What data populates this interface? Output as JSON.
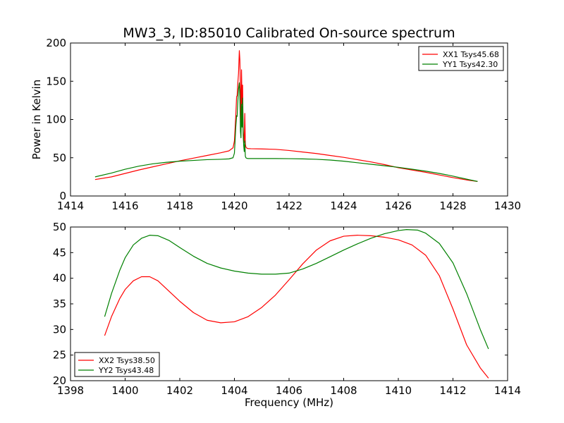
{
  "chart_data": [
    {
      "type": "line",
      "title": "MW3_3, ID:85010 Calibrated On-source spectrum",
      "xlabel": "",
      "ylabel": "Power in Kelvin",
      "xlim": [
        1414,
        1430
      ],
      "ylim": [
        0,
        200
      ],
      "xticks": [
        1414,
        1416,
        1418,
        1420,
        1422,
        1424,
        1426,
        1428,
        1430
      ],
      "yticks": [
        0,
        50,
        100,
        150,
        200
      ],
      "legend_position": "upper right",
      "series": [
        {
          "name": "XX1 Tsys45.68",
          "color": "#ff0000",
          "x": [
            1414.9,
            1415.5,
            1416.0,
            1416.5,
            1417.0,
            1417.5,
            1418.0,
            1418.5,
            1419.0,
            1419.5,
            1419.8,
            1419.95,
            1420.0,
            1420.05,
            1420.08,
            1420.1,
            1420.12,
            1420.15,
            1420.18,
            1420.2,
            1420.22,
            1420.24,
            1420.26,
            1420.28,
            1420.3,
            1420.32,
            1420.34,
            1420.36,
            1420.38,
            1420.4,
            1420.42,
            1420.44,
            1420.46,
            1420.48,
            1420.5,
            1420.6,
            1421.0,
            1421.5,
            1422.0,
            1422.5,
            1423.0,
            1423.5,
            1424.0,
            1424.5,
            1425.0,
            1425.5,
            1426.0,
            1426.5,
            1427.0,
            1427.5,
            1428.0,
            1428.5,
            1428.9
          ],
          "y": [
            21.5,
            25,
            29.5,
            34,
            38,
            42,
            46,
            49.5,
            53,
            56.5,
            59,
            63,
            72,
            105,
            130,
            131,
            145,
            160,
            190,
            178,
            140,
            95,
            165,
            120,
            145,
            88,
            75,
            70,
            108,
            68,
            64,
            63,
            62.5,
            62.2,
            62,
            61.8,
            61.5,
            61,
            59.5,
            57.5,
            55.5,
            53,
            50.5,
            47.5,
            44.5,
            41,
            37,
            34,
            31,
            27.5,
            24,
            21,
            19
          ]
        },
        {
          "name": "YY1 Tsys42.30",
          "color": "#008000",
          "x": [
            1414.9,
            1415.5,
            1416.0,
            1416.5,
            1417.0,
            1417.5,
            1418.0,
            1418.5,
            1419.0,
            1419.5,
            1419.8,
            1419.95,
            1420.0,
            1420.05,
            1420.08,
            1420.1,
            1420.12,
            1420.15,
            1420.18,
            1420.2,
            1420.22,
            1420.24,
            1420.26,
            1420.28,
            1420.3,
            1420.32,
            1420.34,
            1420.36,
            1420.38,
            1420.4,
            1420.42,
            1420.44,
            1420.46,
            1420.48,
            1420.5,
            1420.6,
            1421.0,
            1421.5,
            1422.0,
            1422.5,
            1423.0,
            1423.5,
            1424.0,
            1424.5,
            1425.0,
            1425.5,
            1426.0,
            1426.5,
            1427.0,
            1427.5,
            1428.0,
            1428.5,
            1428.9
          ],
          "y": [
            25,
            30,
            35,
            39,
            42,
            44,
            45.5,
            46.5,
            47.5,
            48,
            48.5,
            50,
            56,
            90,
            105,
            104,
            120,
            140,
            148,
            130,
            85,
            76,
            120,
            90,
            128,
            80,
            66,
            58,
            72,
            52,
            50,
            49.5,
            49.2,
            49.1,
            49,
            49,
            49,
            49,
            48.8,
            48.5,
            48,
            47,
            45.5,
            43.5,
            41.5,
            39.5,
            37.5,
            35,
            32.5,
            29.5,
            26,
            22,
            19
          ]
        }
      ]
    },
    {
      "type": "line",
      "title": "",
      "xlabel": "Frequency (MHz)",
      "ylabel": "",
      "xlim": [
        1398,
        1414
      ],
      "ylim": [
        20,
        50
      ],
      "xticks": [
        1398,
        1400,
        1402,
        1404,
        1406,
        1408,
        1410,
        1412,
        1414
      ],
      "yticks": [
        20,
        25,
        30,
        35,
        40,
        45,
        50
      ],
      "legend_position": "lower left",
      "series": [
        {
          "name": "XX2 Tsys38.50",
          "color": "#ff0000",
          "x": [
            1399.25,
            1399.5,
            1399.8,
            1400.0,
            1400.3,
            1400.6,
            1400.9,
            1401.2,
            1401.6,
            1402.0,
            1402.5,
            1403.0,
            1403.5,
            1404.0,
            1404.5,
            1405.0,
            1405.5,
            1406.0,
            1406.5,
            1407.0,
            1407.5,
            1408.0,
            1408.5,
            1409.0,
            1409.5,
            1410.0,
            1410.5,
            1411.0,
            1411.5,
            1412.0,
            1412.5,
            1413.0,
            1413.3
          ],
          "y": [
            28.8,
            32.5,
            36,
            37.8,
            39.5,
            40.3,
            40.3,
            39.5,
            37.5,
            35.5,
            33.3,
            31.8,
            31.3,
            31.5,
            32.5,
            34.3,
            36.7,
            39.7,
            42.8,
            45.5,
            47.3,
            48.2,
            48.4,
            48.3,
            48,
            47.5,
            46.5,
            44.5,
            40.5,
            34,
            27,
            22.5,
            20.5
          ]
        },
        {
          "name": "YY2 Tsys43.48",
          "color": "#008000",
          "x": [
            1399.25,
            1399.5,
            1399.8,
            1400.0,
            1400.3,
            1400.6,
            1400.9,
            1401.2,
            1401.6,
            1402.0,
            1402.5,
            1403.0,
            1403.5,
            1404.0,
            1404.5,
            1405.0,
            1405.5,
            1406.0,
            1406.5,
            1407.0,
            1407.5,
            1408.0,
            1408.5,
            1409.0,
            1409.5,
            1410.0,
            1410.3,
            1410.7,
            1411.0,
            1411.5,
            1412.0,
            1412.5,
            1413.0,
            1413.3
          ],
          "y": [
            32.5,
            37,
            41.5,
            44,
            46.5,
            47.8,
            48.4,
            48.3,
            47.4,
            46,
            44.3,
            42.9,
            42,
            41.4,
            41,
            40.8,
            40.8,
            41,
            41.8,
            42.9,
            44.2,
            45.5,
            46.7,
            47.8,
            48.7,
            49.3,
            49.5,
            49.4,
            48.8,
            46.8,
            43,
            37,
            30,
            26.2
          ]
        }
      ]
    }
  ]
}
